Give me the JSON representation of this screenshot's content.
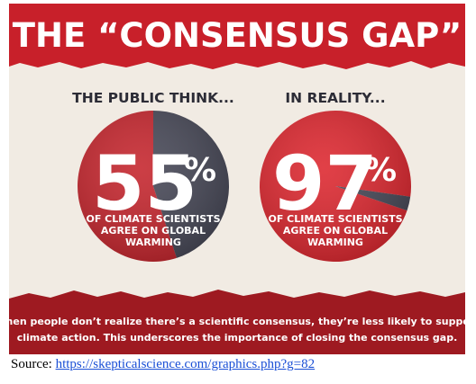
{
  "infographic": {
    "title": "THE “CONSENSUS GAP”",
    "footer_line1": "When people don’t realize there’s a scientific consensus, they’re less likely to support",
    "footer_line2": "climate action. This underscores the importance of closing the consensus gap."
  },
  "colors": {
    "banner_red": "#c8202a",
    "background": "#f1ebe3",
    "public_slice": "#c5242c",
    "reality_slice": "#dd262e",
    "remainder_slice": "#464756",
    "dark_text": "#2c2c36"
  },
  "chart_data": [
    {
      "type": "pie",
      "heading": "THE PUBLIC THINK...",
      "value": 55,
      "big_label": "55",
      "percent_sign": "%",
      "caption_lines": [
        "OF CLIMATE SCIENTISTS",
        "AGREE ON GLOBAL",
        "WARMING"
      ],
      "slices": [
        {
          "value": 55,
          "color": "#c5242c"
        },
        {
          "value": 45,
          "color": "#464756"
        }
      ]
    },
    {
      "type": "pie",
      "heading": "IN REALITY...",
      "value": 97,
      "big_label": "97",
      "percent_sign": "%",
      "caption_lines": [
        "OF CLIMATE SCIENTISTS",
        "AGREE ON GLOBAL",
        "WARMING"
      ],
      "slices": [
        {
          "value": 97,
          "color": "#dd262e"
        },
        {
          "value": 3,
          "color": "#464756"
        }
      ]
    }
  ],
  "source": {
    "label": "Source: ",
    "link_text": "https://skepticalscience.com/graphics.php?g=82"
  }
}
